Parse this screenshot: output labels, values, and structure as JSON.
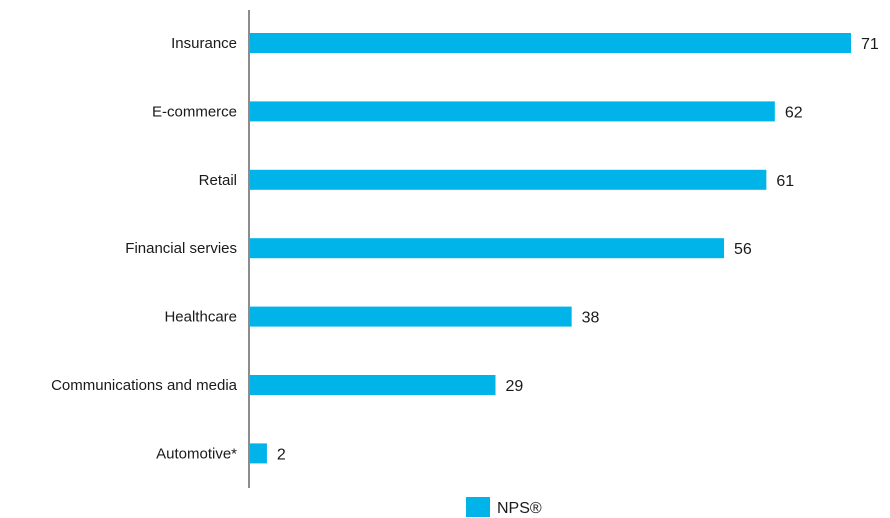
{
  "chart_data": {
    "type": "bar",
    "orientation": "horizontal",
    "categories": [
      "Insurance",
      "E-commerce",
      "Retail",
      "Financial servies",
      "Healthcare",
      "Communications and media",
      "Automotive*"
    ],
    "series": [
      {
        "name": "NPS®",
        "values": [
          71,
          62,
          61,
          56,
          38,
          29,
          2
        ],
        "color": "#00b4ea"
      }
    ],
    "value_labels": [
      "71",
      "62",
      "61",
      "56",
      "38",
      "29",
      "2"
    ],
    "xlim": [
      0,
      71
    ],
    "grid": false,
    "legend": {
      "position": "bottom-center",
      "entries": [
        "NPS®"
      ]
    },
    "axis_color": "#1a1a1a"
  }
}
